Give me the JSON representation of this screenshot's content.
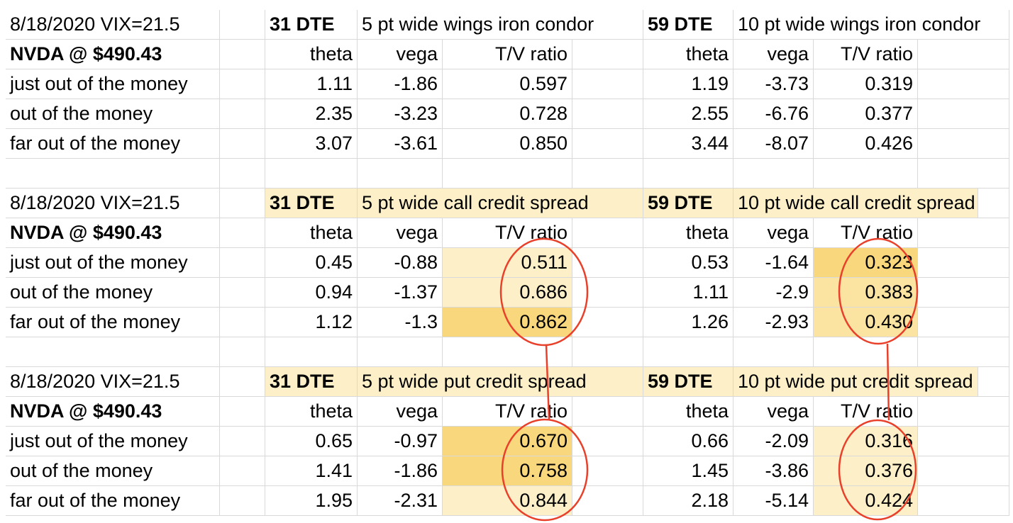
{
  "sections": [
    {
      "date_vix": "8/18/2020 VIX=21.5",
      "stock": "NVDA @ $490.43",
      "left": {
        "dte": "31 DTE",
        "strategy": "5 pt wide wings iron condor"
      },
      "right": {
        "dte": "59 DTE",
        "strategy": "10 pt wide wings iron condor"
      },
      "headers": {
        "theta": "theta",
        "vega": "vega",
        "ratio": "T/V ratio"
      },
      "rows": [
        {
          "label": "just out of the money",
          "l_theta": "1.11",
          "l_vega": "-1.86",
          "l_ratio": "0.597",
          "r_theta": "1.19",
          "r_vega": "-3.73",
          "r_ratio": "0.319"
        },
        {
          "label": "out of the money",
          "l_theta": "2.35",
          "l_vega": "-3.23",
          "l_ratio": "0.728",
          "r_theta": "2.55",
          "r_vega": "-6.76",
          "r_ratio": "0.377"
        },
        {
          "label": "far out of the money",
          "l_theta": "3.07",
          "l_vega": "-3.61",
          "l_ratio": "0.850",
          "r_theta": "3.44",
          "r_vega": "-8.07",
          "r_ratio": "0.426"
        }
      ]
    },
    {
      "date_vix": "8/18/2020 VIX=21.5",
      "stock": "NVDA @ $490.43",
      "left": {
        "dte": "31 DTE",
        "strategy": "5 pt wide call credit spread"
      },
      "right": {
        "dte": "59 DTE",
        "strategy": "10 pt wide call credit spread"
      },
      "headers": {
        "theta": "theta",
        "vega": "vega",
        "ratio": "T/V ratio"
      },
      "rows": [
        {
          "label": "just out of the money",
          "l_theta": "0.45",
          "l_vega": "-0.88",
          "l_ratio": "0.511",
          "r_theta": "0.53",
          "r_vega": "-1.64",
          "r_ratio": "0.323"
        },
        {
          "label": "out of the money",
          "l_theta": "0.94",
          "l_vega": "-1.37",
          "l_ratio": "0.686",
          "r_theta": "1.11",
          "r_vega": "-2.9",
          "r_ratio": "0.383"
        },
        {
          "label": "far out of the money",
          "l_theta": "1.12",
          "l_vega": "-1.3",
          "l_ratio": "0.862",
          "r_theta": "1.26",
          "r_vega": "-2.93",
          "r_ratio": "0.430"
        }
      ]
    },
    {
      "date_vix": "8/18/2020 VIX=21.5",
      "stock": "NVDA @ $490.43",
      "left": {
        "dte": "31 DTE",
        "strategy": "5 pt wide put credit spread"
      },
      "right": {
        "dte": "59 DTE",
        "strategy": "10 pt wide put credit spread"
      },
      "headers": {
        "theta": "theta",
        "vega": "vega",
        "ratio": "T/V ratio"
      },
      "rows": [
        {
          "label": "just out of the money",
          "l_theta": "0.65",
          "l_vega": "-0.97",
          "l_ratio": "0.670",
          "r_theta": "0.66",
          "r_vega": "-2.09",
          "r_ratio": "0.316"
        },
        {
          "label": "out of the money",
          "l_theta": "1.41",
          "l_vega": "-1.86",
          "l_ratio": "0.758",
          "r_theta": "1.45",
          "r_vega": "-3.86",
          "r_ratio": "0.376"
        },
        {
          "label": "far out of the money",
          "l_theta": "1.95",
          "l_vega": "-2.31",
          "l_ratio": "0.844",
          "r_theta": "2.18",
          "r_vega": "-5.14",
          "r_ratio": "0.424"
        }
      ]
    }
  ],
  "colors": {
    "highlight_light": "#fdf0c9",
    "highlight_medium": "#fbe3a2",
    "highlight_strong": "#f9d77c",
    "annotation_red": "#e8402a",
    "gridline": "#d9d9d9"
  }
}
